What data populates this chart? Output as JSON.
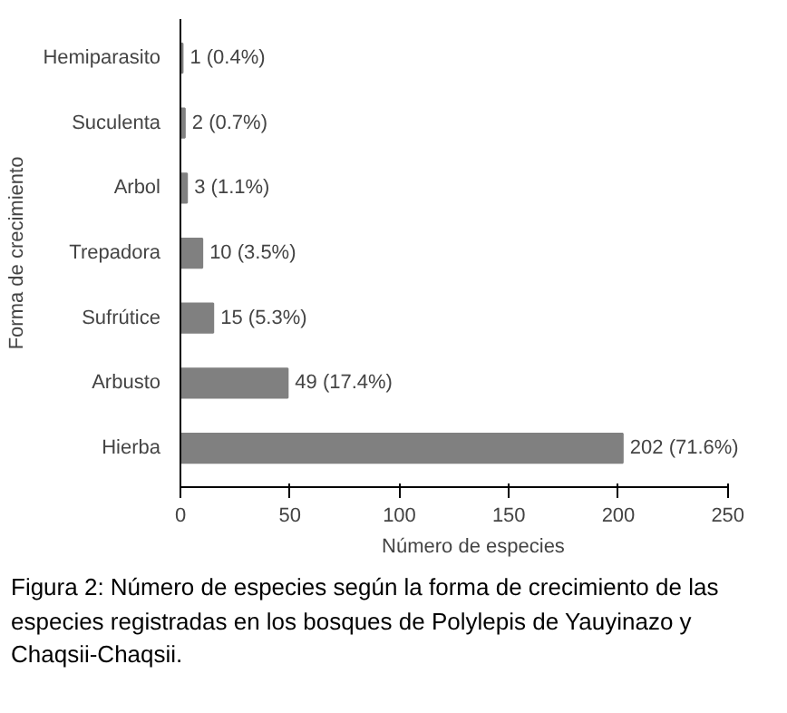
{
  "chart_data": {
    "type": "bar",
    "orientation": "horizontal",
    "xlabel": "Número de especies",
    "ylabel": "Forma de crecimiento",
    "categories": [
      "Hemiparasito",
      "Suculenta",
      "Arbol",
      "Trepadora",
      "Sufrútice",
      "Arbusto",
      "Hierba"
    ],
    "values": [
      1,
      2,
      3,
      10,
      15,
      49,
      202
    ],
    "value_labels": [
      "1 (0.4%)",
      "2 (0.7%)",
      "3 (1.1%)",
      "10 (3.5%)",
      "15 (5.3%)",
      "49 (17.4%)",
      "202 (71.6%)"
    ],
    "color": "#808080",
    "xlim": [
      0,
      250
    ],
    "xticks": [
      0,
      50,
      100,
      150,
      200,
      250
    ],
    "grid": false,
    "annotations": [
      "Figura 2: Número de especies según la forma de crecimiento de las especies registradas en los bosques de Polylepis de Yauyinazo y Chaqsii-Chaqsii."
    ]
  }
}
